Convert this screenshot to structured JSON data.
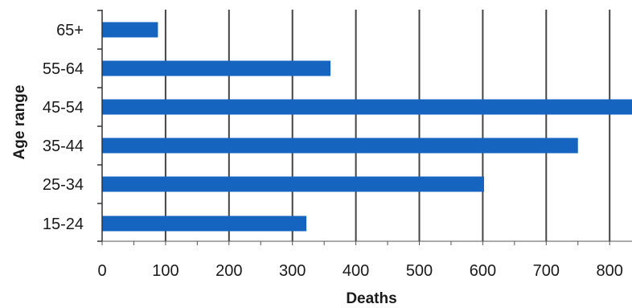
{
  "chart_data": {
    "type": "bar",
    "orientation": "horizontal",
    "title": "",
    "xlabel": "Deaths",
    "ylabel": "Age range",
    "categories": [
      "65+",
      "55-64",
      "45-54",
      "35-44",
      "25-34",
      "15-24"
    ],
    "values": [
      88,
      360,
      840,
      750,
      602,
      322
    ],
    "xlim": [
      0,
      830
    ],
    "xticks": [
      "0",
      "100",
      "200",
      "300",
      "400",
      "500",
      "600",
      "700",
      "800"
    ],
    "grid": "vertical",
    "legend": "none",
    "bar_color": "#1565c0"
  }
}
